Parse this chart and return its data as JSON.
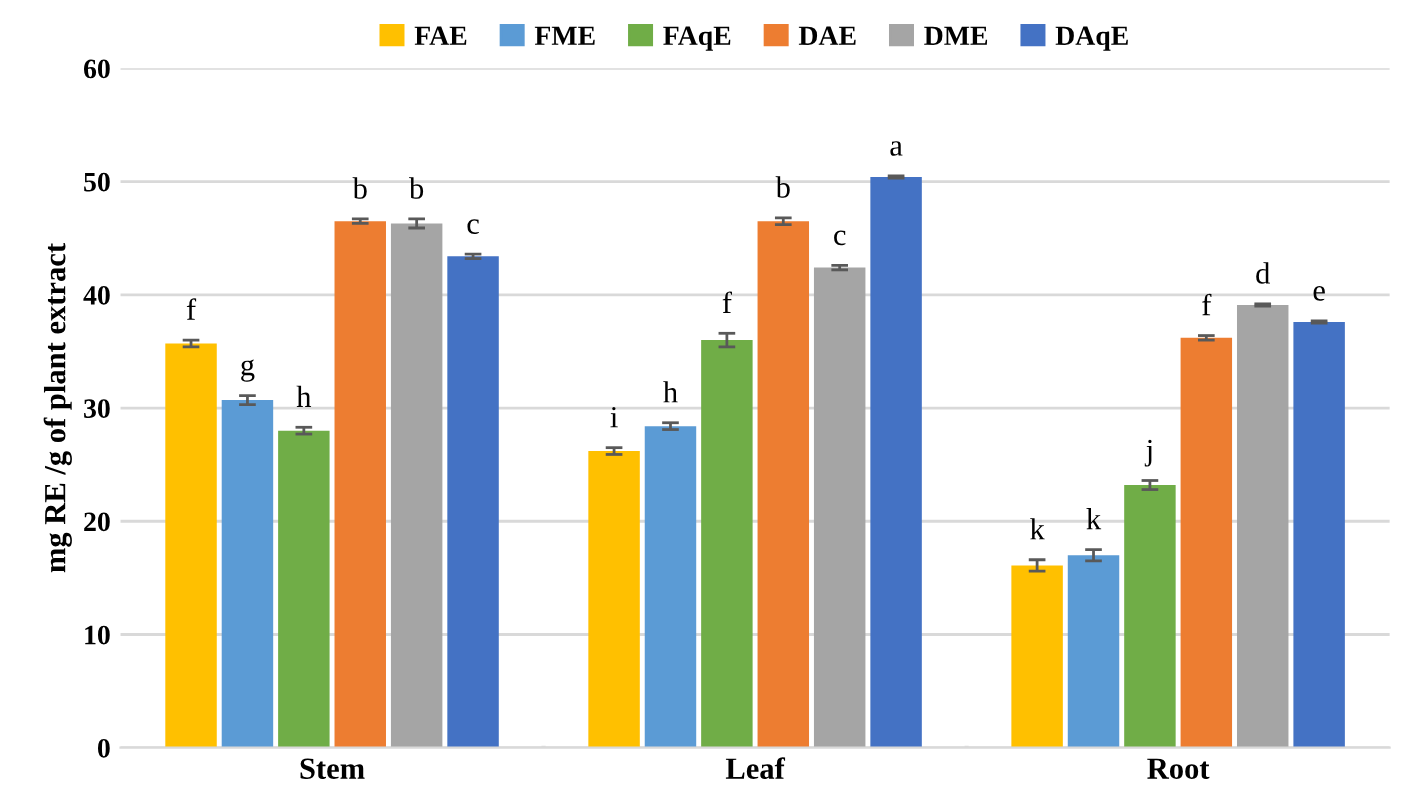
{
  "chart_data": {
    "type": "bar",
    "ylabel": "mg RE /g of plant extract",
    "categories": [
      "Stem",
      "Leaf",
      "Root"
    ],
    "ylim": [
      0,
      60
    ],
    "yticks": [
      0,
      10,
      20,
      30,
      40,
      50,
      60
    ],
    "grid": "y",
    "legend": "top",
    "series": [
      {
        "name": "FAE",
        "color": "#ffc000",
        "values": [
          35.7,
          26.2,
          16.1
        ],
        "errors": [
          0.3,
          0.3,
          0.5
        ],
        "value_labels": [
          "f",
          "i",
          "k"
        ]
      },
      {
        "name": "FME",
        "color": "#5b9bd5",
        "values": [
          30.7,
          28.4,
          17.0
        ],
        "errors": [
          0.4,
          0.3,
          0.5
        ],
        "value_labels": [
          "g",
          "h",
          "k"
        ]
      },
      {
        "name": "FAqE",
        "color": "#70ad47",
        "values": [
          28.0,
          36.0,
          23.2
        ],
        "errors": [
          0.3,
          0.6,
          0.4
        ],
        "value_labels": [
          "h",
          "f",
          "j"
        ]
      },
      {
        "name": "DAE",
        "color": "#ed7d31",
        "values": [
          46.5,
          46.5,
          36.2
        ],
        "errors": [
          0.2,
          0.3,
          0.2
        ],
        "value_labels": [
          "b",
          "b",
          "f"
        ]
      },
      {
        "name": "DME",
        "color": "#a5a5a5",
        "values": [
          46.3,
          42.4,
          39.1
        ],
        "errors": [
          0.4,
          0.2,
          0.1
        ],
        "value_labels": [
          "b",
          "c",
          "d"
        ]
      },
      {
        "name": "DAqE",
        "color": "#4472c4",
        "values": [
          43.4,
          50.4,
          37.6
        ],
        "errors": [
          0.2,
          0.1,
          0.1
        ],
        "value_labels": [
          "c",
          "a",
          "e"
        ]
      }
    ]
  }
}
